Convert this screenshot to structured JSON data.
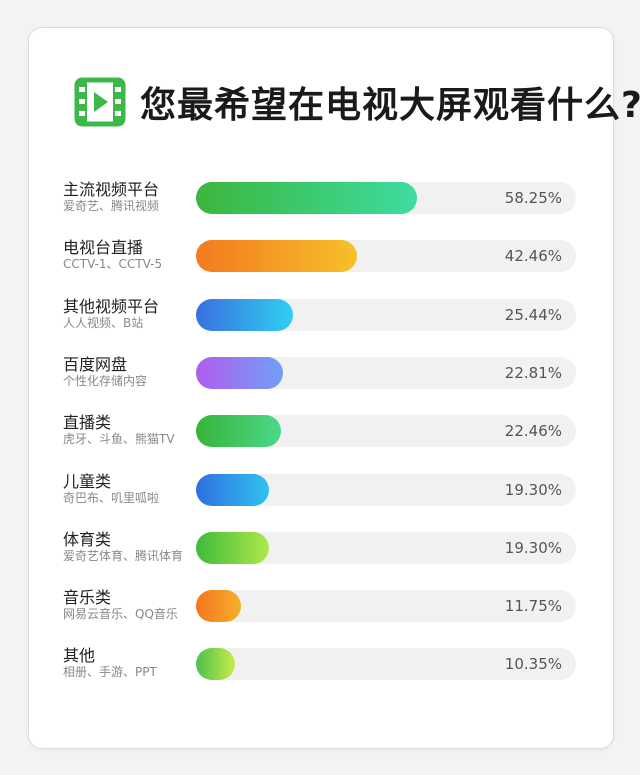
{
  "title": "您最希望在电视大屏观看什么?",
  "icon": "video-play-icon",
  "colors": {
    "accent": "#3cb94a",
    "track": "#f1f1f1"
  },
  "chart_data": {
    "type": "bar",
    "orientation": "horizontal",
    "title": "您最希望在电视大屏观看什么?",
    "xlim": [
      0,
      100
    ],
    "unit": "%",
    "categories": [
      "主流视频平台",
      "电视台直播",
      "其他视频平台",
      "百度网盘",
      "直播类",
      "儿童类",
      "体育类",
      "音乐类",
      "其他"
    ],
    "subtitles": [
      "爱奇艺、腾讯视频",
      "CCTV-1、CCTV-5",
      "人人视频、B站",
      "个性化存储内容",
      "虎牙、斗鱼、熊猫TV",
      "奇巴布、叽里呱啦",
      "爱奇艺体育、腾讯体育",
      "网易云音乐、QQ音乐",
      "相册、手游、PPT"
    ],
    "values": [
      58.25,
      42.46,
      25.44,
      22.81,
      22.46,
      19.3,
      19.3,
      11.75,
      10.35
    ],
    "labels": [
      "58.25%",
      "42.46%",
      "25.44%",
      "22.81%",
      "22.46%",
      "19.30%",
      "19.30%",
      "11.75%",
      "10.35%"
    ],
    "bar_colors": [
      [
        "#3cb63c",
        "#3ddca0"
      ],
      [
        "#f37a1f",
        "#f7c02a"
      ],
      [
        "#3a6fe0",
        "#2fd0f0"
      ],
      [
        "#b15cf0",
        "#6fa0f5"
      ],
      [
        "#36b53a",
        "#4ad88a"
      ],
      [
        "#2f6fe0",
        "#2fc3ef"
      ],
      [
        "#3fba3a",
        "#aee84a"
      ],
      [
        "#f4751e",
        "#f6b02a"
      ],
      [
        "#4cc04a",
        "#c8ec4a"
      ]
    ]
  }
}
